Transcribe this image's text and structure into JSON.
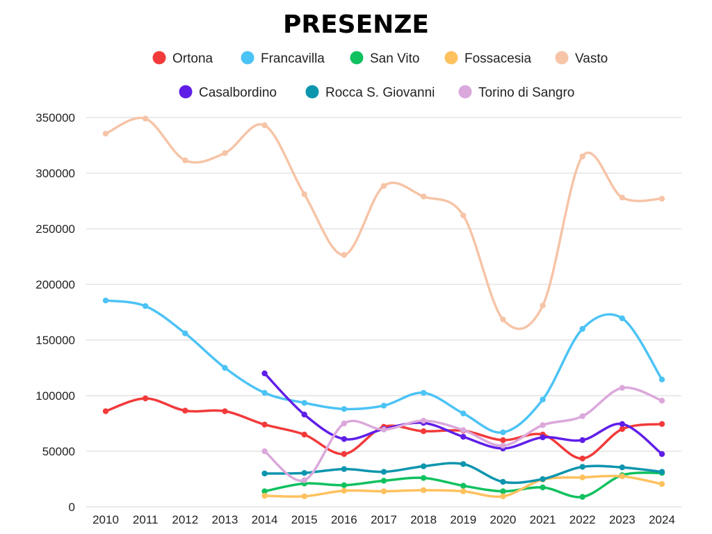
{
  "chart_data": {
    "type": "line",
    "title": "PRESENZE",
    "xlabel": "",
    "ylabel": "",
    "ylim": [
      0,
      350000
    ],
    "yticks": [
      0,
      50000,
      100000,
      150000,
      200000,
      250000,
      300000,
      350000
    ],
    "grid": true,
    "legend_position": "top",
    "x": [
      "2010",
      "2011",
      "2012",
      "2013",
      "2014",
      "2015",
      "2016",
      "2017",
      "2018",
      "2019",
      "2020",
      "2021",
      "2022",
      "2023",
      "2024"
    ],
    "series": [
      {
        "name": "Ortona",
        "color": "#f23a3a",
        "values": [
          86000,
          97500,
          86500,
          86000,
          74000,
          65000,
          47500,
          72000,
          68000,
          68500,
          60000,
          65000,
          43500,
          70000,
          74500
        ]
      },
      {
        "name": "Francavilla",
        "color": "#4cc3f5",
        "values": [
          185500,
          180500,
          156000,
          125000,
          102500,
          93500,
          88000,
          91000,
          102500,
          84000,
          67000,
          96500,
          160000,
          169500,
          114500
        ]
      },
      {
        "name": "San Vito",
        "color": "#10c15f",
        "values": [
          null,
          null,
          null,
          null,
          14000,
          21000,
          19500,
          23500,
          26000,
          19000,
          14000,
          17500,
          9000,
          28500,
          30500
        ]
      },
      {
        "name": "Fossacesia",
        "color": "#fec15e",
        "values": [
          null,
          null,
          null,
          null,
          10000,
          9500,
          14500,
          14000,
          15000,
          14000,
          9500,
          24500,
          26500,
          27500,
          20500
        ]
      },
      {
        "name": "Vasto",
        "color": "#f6c4a7",
        "values": [
          335500,
          349000,
          311500,
          318000,
          343000,
          281000,
          226500,
          288500,
          279000,
          262000,
          168500,
          181000,
          315000,
          278000,
          277000
        ]
      },
      {
        "name": "Casalbordino",
        "color": "#5f1ee8",
        "values": [
          null,
          null,
          null,
          null,
          120000,
          83000,
          61000,
          70000,
          75500,
          63000,
          52500,
          62500,
          60000,
          74500,
          47500
        ]
      },
      {
        "name": "Rocca S. Giovanni",
        "color": "#0d95ae",
        "values": [
          null,
          null,
          null,
          null,
          30000,
          30500,
          34000,
          31500,
          36500,
          38500,
          22500,
          25000,
          36000,
          35500,
          31500
        ]
      },
      {
        "name": "Torino di Sangro",
        "color": "#dba8db",
        "values": [
          null,
          null,
          null,
          null,
          50000,
          24000,
          75000,
          69500,
          77500,
          69000,
          55000,
          73500,
          81500,
          107000,
          95500
        ]
      }
    ]
  }
}
